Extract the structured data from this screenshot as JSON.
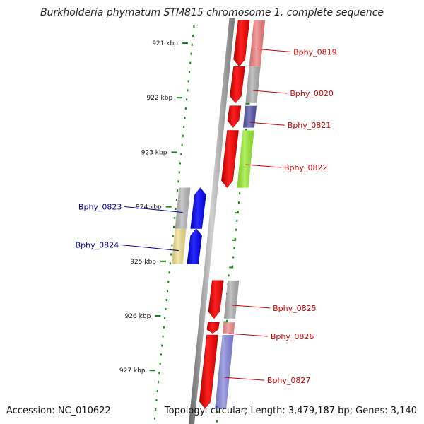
{
  "title": "Burkholderia phymatum STM815 chromosome 1, complete sequence",
  "footer": {
    "accession": "Accession: NC_010622",
    "topology": "Topology: circular; Length: 3,479,187 bp; Genes: 3,140"
  },
  "colors": {
    "forward_gene": "#ff0000",
    "reverse_gene": "#0000ff",
    "forward_label": "#cc0000",
    "reverse_label": "#000099",
    "tick": "#118811",
    "backbone": "#888888"
  },
  "ticks": [
    {
      "label": "921 kbp",
      "kbp": 921
    },
    {
      "label": "922 kbp",
      "kbp": 922
    },
    {
      "label": "923 kbp",
      "kbp": 923
    },
    {
      "label": "924 kbp",
      "kbp": 924
    },
    {
      "label": "925 kbp",
      "kbp": 925
    },
    {
      "label": "926 kbp",
      "kbp": 926
    },
    {
      "label": "927 kbp",
      "kbp": 927
    }
  ],
  "genes": [
    {
      "name": "Bphy_0819",
      "strand": "forward",
      "start_kbp": 920.58,
      "end_kbp": 921.43,
      "cog_color": "#f08080"
    },
    {
      "name": "Bphy_0820",
      "strand": "forward",
      "start_kbp": 921.43,
      "end_kbp": 922.1,
      "cog_color": "#b0b0b0"
    },
    {
      "name": "Bphy_0821",
      "strand": "forward",
      "start_kbp": 922.15,
      "end_kbp": 922.55,
      "cog_color": "#5555aa"
    },
    {
      "name": "Bphy_0822",
      "strand": "forward",
      "start_kbp": 922.6,
      "end_kbp": 923.65,
      "cog_color": "#99ee33"
    },
    {
      "name": "Bphy_0823",
      "strand": "reverse",
      "start_kbp": 923.65,
      "end_kbp": 924.4,
      "cog_color": "#b8b8b8"
    },
    {
      "name": "Bphy_0824",
      "strand": "reverse",
      "start_kbp": 924.4,
      "end_kbp": 925.05,
      "cog_color": "#f0e090"
    },
    {
      "name": "Bphy_0825",
      "strand": "forward",
      "start_kbp": 925.35,
      "end_kbp": 926.05,
      "cog_color": "#b0b0b0"
    },
    {
      "name": "Bphy_0826",
      "strand": "forward",
      "start_kbp": 926.12,
      "end_kbp": 926.32,
      "cog_color": "#f09090"
    },
    {
      "name": "Bphy_0827",
      "strand": "forward",
      "start_kbp": 926.35,
      "end_kbp": 927.7,
      "cog_color": "#8888dd"
    }
  ]
}
